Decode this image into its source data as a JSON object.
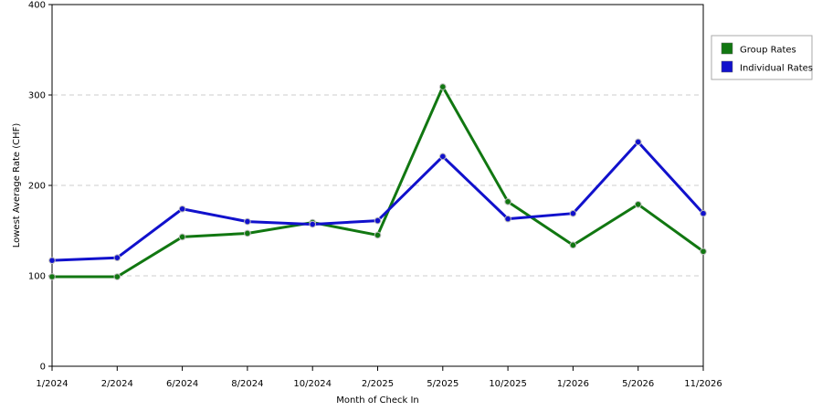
{
  "chart_data": {
    "type": "line",
    "title": "",
    "xlabel": "Month of Check In",
    "ylabel": "Lowest Average Rate (CHF)",
    "categories": [
      "1/2024",
      "2/2024",
      "6/2024",
      "8/2024",
      "10/2024",
      "2/2025",
      "5/2025",
      "10/2025",
      "1/2026",
      "5/2026",
      "11/2026"
    ],
    "ylim": [
      0,
      400
    ],
    "yticks": [
      "0",
      "100",
      "200",
      "300",
      "400"
    ],
    "grid": true,
    "legend_position": "right",
    "series": [
      {
        "name": "Group Rates",
        "color": "#117711",
        "values": [
          99,
          99,
          143,
          147,
          159,
          145,
          309,
          182,
          134,
          179,
          127
        ]
      },
      {
        "name": "Individual Rates",
        "color": "#1111cc",
        "values": [
          117,
          120,
          174,
          160,
          157,
          161,
          232,
          163,
          169,
          248,
          169
        ]
      }
    ]
  }
}
